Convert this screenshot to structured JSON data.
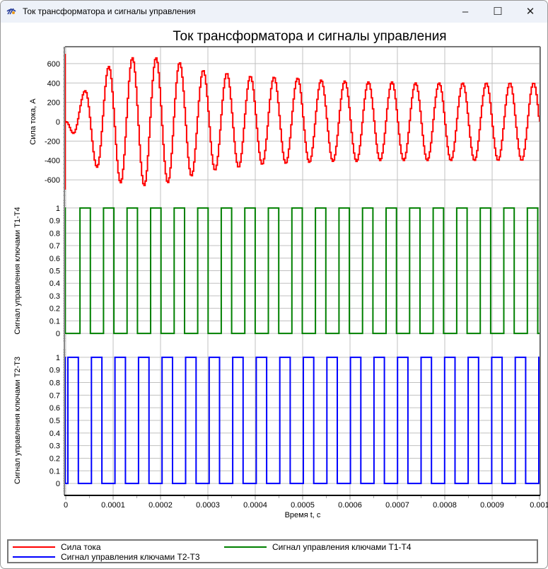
{
  "window": {
    "title": "Ток трансформатора и сигналы управления",
    "minimize": "–",
    "maximize": "☐",
    "close": "✕"
  },
  "chart_data": {
    "type": "line",
    "title": "Ток трансформатора и сигналы управления",
    "xlabel": "Время t, с",
    "xlim": [
      0,
      0.001
    ],
    "xticks": [
      "0",
      "0.0001",
      "0.0002",
      "0.0003",
      "0.0004",
      "0.0005",
      "0.0006",
      "0.0007",
      "0.0008",
      "0.0009",
      "0.001"
    ],
    "panels": [
      {
        "name": "Сила тока",
        "ylabel": "Сила тока, А",
        "color": "#ff0000",
        "ylim": [
          -760,
          760
        ],
        "yticks": [
          "-600",
          "-400",
          "-200",
          "0",
          "200",
          "400",
          "600"
        ],
        "series_model": "extrema",
        "first_extremum_t": 1.51e-05,
        "half_period": 2.49e-05,
        "extrema": [
          -120,
          320,
          -470,
          570,
          -630,
          660,
          -660,
          660,
          -630,
          610,
          -560,
          530,
          -500,
          500,
          -470,
          470,
          -440,
          460,
          -430,
          450,
          -420,
          430,
          -410,
          420,
          -410,
          410,
          -400,
          410,
          -400,
          400,
          -400,
          400,
          -400,
          400,
          -400,
          400,
          -400,
          400,
          -400,
          400
        ]
      },
      {
        "name": "Сигнал управления ключами Т1-Т4",
        "ylabel": "Сигнал управления ключами Т1-Т4",
        "color": "#008000",
        "ylim": [
          -0.05,
          1.05
        ],
        "yticks": [
          "0",
          "0.1",
          "0.2",
          "0.3",
          "0.4",
          "0.5",
          "0.6",
          "0.7",
          "0.8",
          "0.9",
          "1"
        ],
        "series_model": "pulse",
        "period": 4.97e-05,
        "on_offset": 3e-05,
        "on_width": 2.2e-05
      },
      {
        "name": "Сигнал управления ключами Т2-Т3",
        "ylabel": "Сигнал управления ключами Т2-Т3",
        "color": "#0000ff",
        "ylim": [
          -0.05,
          1.05
        ],
        "yticks": [
          "0",
          "0.1",
          "0.2",
          "0.3",
          "0.4",
          "0.5",
          "0.6",
          "0.7",
          "0.8",
          "0.9",
          "1"
        ],
        "series_model": "pulse",
        "period": 4.97e-05,
        "on_offset": 4.5e-06,
        "on_width": 2.2e-05
      }
    ],
    "legend": {
      "placement": "bottom",
      "entries": [
        {
          "label": "Сила тока",
          "color": "#ff0000"
        },
        {
          "label": "Сигнал управления ключами Т1-Т4",
          "color": "#008000"
        },
        {
          "label": "Сигнал управления ключами Т2-Т3",
          "color": "#0000ff"
        }
      ]
    }
  }
}
